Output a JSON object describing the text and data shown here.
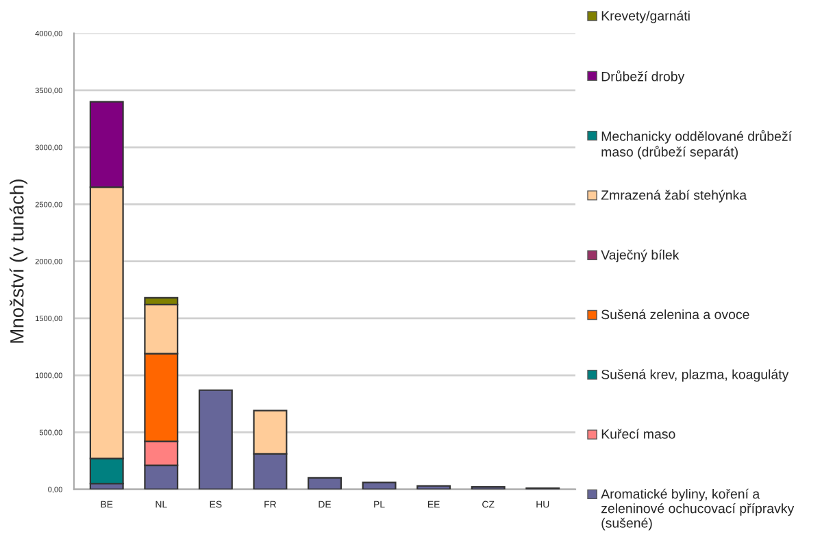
{
  "chart_data": {
    "type": "bar",
    "stacked": true,
    "ylabel": "Množství (v tunách)",
    "categories": [
      "BE",
      "NL",
      "ES",
      "FR",
      "DE",
      "PL",
      "EE",
      "CZ",
      "HU"
    ],
    "series": [
      {
        "name": "Aromatické byliny, koření a zeleninové ochucovací přípravky (sušené)",
        "color": "#666699",
        "values": [
          50,
          210,
          870,
          310,
          100,
          60,
          30,
          20,
          10
        ]
      },
      {
        "name": "Kuřecí maso",
        "color": "#ff8080",
        "values": [
          null,
          210,
          null,
          null,
          null,
          null,
          null,
          null,
          null
        ]
      },
      {
        "name": "Sušená krev, plazma, koaguláty",
        "color": "#008080",
        "values": [
          220,
          null,
          null,
          null,
          null,
          null,
          null,
          null,
          null
        ]
      },
      {
        "name": "Sušená zelenina a ovoce",
        "color": "#ff6600",
        "values": [
          null,
          770,
          null,
          null,
          null,
          null,
          null,
          null,
          null
        ]
      },
      {
        "name": "Vaječný bílek",
        "color": "#993366",
        "values": [
          null,
          null,
          null,
          null,
          null,
          null,
          null,
          null,
          null
        ]
      },
      {
        "name": "Zmrazená žabí stehýnka",
        "color": "#ffcc99",
        "values": [
          2380,
          430,
          null,
          380,
          null,
          null,
          null,
          null,
          null
        ]
      },
      {
        "name": "Mechanicky oddělované drůbeží maso (drůbeží separát)",
        "color": "#008080",
        "values": [
          null,
          null,
          null,
          null,
          null,
          null,
          null,
          null,
          null
        ]
      },
      {
        "name": "Drůbeží droby",
        "color": "#800080",
        "values": [
          750,
          null,
          null,
          null,
          null,
          null,
          null,
          null,
          null
        ]
      },
      {
        "name": "Krevety/garnáti",
        "color": "#808000",
        "values": [
          null,
          60,
          null,
          null,
          null,
          null,
          null,
          null,
          null
        ]
      }
    ],
    "ylim": [
      0,
      4000
    ],
    "yticks": [
      {
        "value": 0,
        "label": "0,00"
      },
      {
        "value": 500,
        "label": "500,00"
      },
      {
        "value": 1000,
        "label": "1000,00"
      },
      {
        "value": 1500,
        "label": "1500,00"
      },
      {
        "value": 2000,
        "label": "2000,00"
      },
      {
        "value": 2500,
        "label": "2500,00"
      },
      {
        "value": 3000,
        "label": "3000,00"
      },
      {
        "value": 3500,
        "label": "3500,00"
      },
      {
        "value": 4000,
        "label": "4000,00"
      }
    ],
    "grid": "y",
    "legend": "right"
  }
}
